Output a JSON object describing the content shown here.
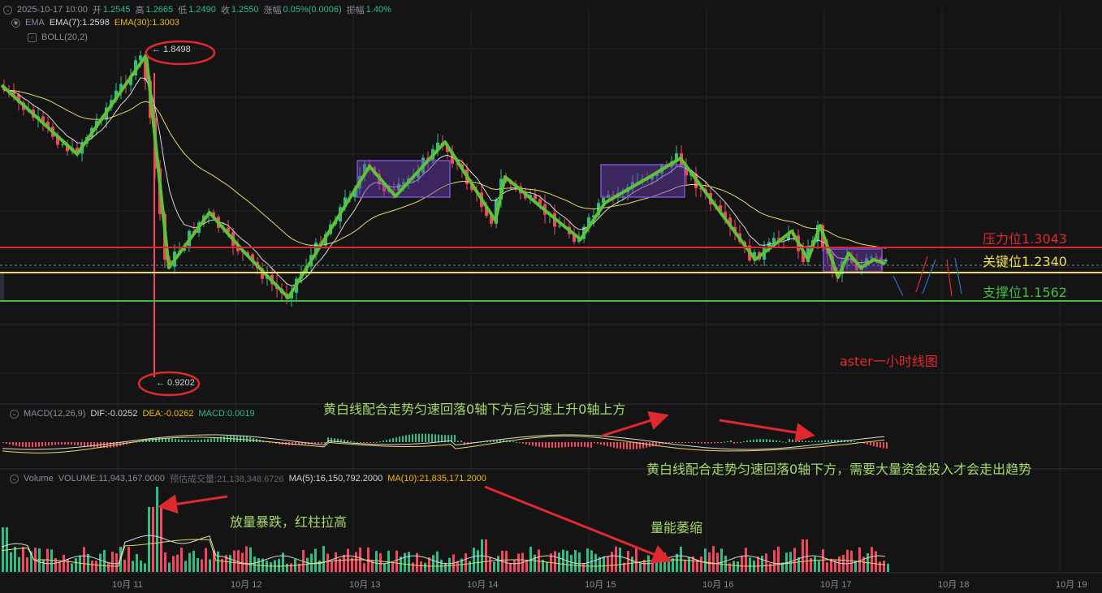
{
  "header": {
    "datetime": "2025-10-17 10:00",
    "open_label": "开",
    "open": "1.2545",
    "high_label": "高",
    "high": "1.2665",
    "low_label": "低",
    "low": "1.2490",
    "close_label": "收",
    "close": "1.2550",
    "change_label": "涨幅",
    "change": "0.05%(0.0006)",
    "amp_label": "振幅",
    "amp": "1.40%"
  },
  "ema": {
    "name": "EMA",
    "ema7": "EMA(7):1.2598",
    "ema30": "EMA(30):1.3003"
  },
  "boll": {
    "name": "BOLL(20,2)"
  },
  "price_marks": {
    "high": "← 1.8498",
    "low": "← 0.9202"
  },
  "levels": {
    "resistance": "压力位1.3043",
    "key": "关键位1.2340",
    "support": "支撑位1.1562"
  },
  "title_note": "aster一小时线图",
  "macd": {
    "name": "MACD(12,26,9)",
    "dif": "DIF:-0.0252",
    "dea": "DEA:-0.0262",
    "macd": "MACD:0.0019"
  },
  "volume": {
    "name": "Volume",
    "vol": "VOLUME:11,943,167.0000",
    "est": "预估成交量:21,138,348.6726",
    "ma5": "MA(5):16,150,792.2000",
    "ma10": "MA(10):21,835,171.2000"
  },
  "annotations": {
    "macd_top": "黄白线配合走势匀速回落0轴下方后匀速上升0轴上方",
    "macd_bottom": "黄白线配合走势匀速回落0轴下方，需要大量资金投入才会走出趋势",
    "vol_spike": "放量暴跌，红柱拉高",
    "vol_shrink": "量能萎缩"
  },
  "x_axis": [
    "10月 11",
    "10月 12",
    "10月 13",
    "10月 14",
    "10月 15",
    "10月 16",
    "10月 17",
    "10月 18",
    "10月 19"
  ],
  "colors": {
    "up": "#2ebd85",
    "down": "#f6465d",
    "zigzag": "#5ec236",
    "resistance": "#e0282e",
    "key": "#f0e050",
    "support": "#3fbf3f",
    "box": "#6a3fb5"
  }
}
